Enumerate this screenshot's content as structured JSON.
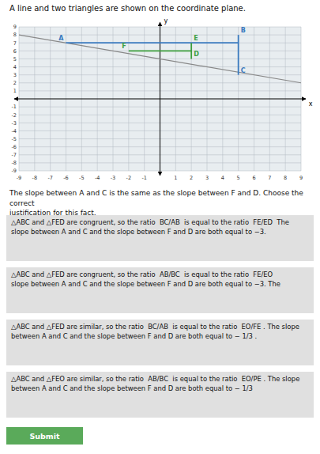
{
  "chart_data": {
    "type": "line",
    "title": "A line and two triangles are shown on the coordinate plane.",
    "x_label": "x",
    "y_label": "y",
    "xlim": [
      -9,
      9
    ],
    "ylim": [
      -9,
      9
    ],
    "xticks": [
      -9,
      -8,
      -7,
      -6,
      -5,
      -4,
      -3,
      -2,
      -1,
      1,
      2,
      3,
      4,
      5,
      6,
      7,
      8,
      9
    ],
    "yticks": [
      -9,
      -8,
      -7,
      -6,
      -5,
      -4,
      -3,
      -2,
      -1,
      1,
      2,
      3,
      4,
      5,
      6,
      7,
      8,
      9
    ],
    "grid": true,
    "series": [
      {
        "color": "#888888",
        "x": [
          -9,
          9
        ],
        "values": [
          7.9997,
          2.0003
        ]
      },
      {
        "color": "#3a7abf",
        "x": [
          -6,
          5
        ],
        "values": [
          7,
          7
        ]
      },
      {
        "color": "#3a7abf",
        "x": [
          5,
          5
        ],
        "values": [
          8,
          3
        ]
      },
      {
        "color": "#3d9e3d",
        "x": [
          -2,
          2
        ],
        "values": [
          6,
          6
        ]
      },
      {
        "color": "#3d9e3d",
        "x": [
          2,
          2
        ],
        "values": [
          7,
          5
        ]
      }
    ],
    "annotations": [
      {
        "text": "A",
        "x": -6,
        "y": 7,
        "color": "#3a7abf"
      },
      {
        "text": "B",
        "x": 5,
        "y": 8,
        "color": "#3a7abf"
      },
      {
        "text": "C",
        "x": 5,
        "y": 3,
        "color": "#3a7abf"
      },
      {
        "text": "F",
        "x": -2,
        "y": 6,
        "color": "#3d9e3d"
      },
      {
        "text": "E",
        "x": 2,
        "y": 7,
        "color": "#3d9e3d"
      },
      {
        "text": "D",
        "x": 2,
        "y": 5,
        "color": "#3d9e3d"
      }
    ],
    "question": "The slope between A and C is the same as the slope between F and D. Choose the correct\njustification for this fact.",
    "answers": [
      "△ABC and △FED are congruent, so the ratio  BC/AB  is equal to the ratio  FE/ED  The\nslope between A and C and the slope between F and D are both equal to −3.",
      "△ABC and △FED are congruent, so the ratio  AB/BC  is equal to the ratio  FE/EO \nslope between A and C and the slope between F and D are both equal to −3. The",
      "△ABC and △FED are similar, so the ratio  BC/AB  is equal to the ratio  EO/FE . The slope\nbetween A and C and the slope between F and D are both equal to − 1/3 .",
      "△ABC and △FEO are similar, so the ratio  AB/BC  is equal to the ratio  EO/PE . The slope\nbetween A and C and the slope between F and D are both equal to − 1/3 "
    ],
    "submit": "Submit"
  }
}
